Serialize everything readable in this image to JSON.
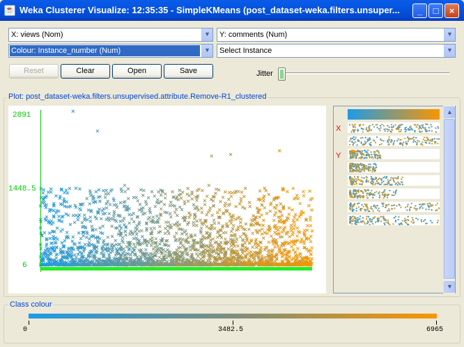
{
  "window": {
    "title": "Weka Clusterer Visualize: 12:35:35 - SimpleKMeans (post_dataset-weka.filters.unsuper...",
    "icon": "java-cup-icon",
    "controls": {
      "minimize": "_",
      "maximize": "□",
      "close": "×"
    }
  },
  "axes": {
    "x_select": "X: views (Nom)",
    "y_select": "Y: comments (Num)",
    "colour_select": "Colour: Instance_number (Num)",
    "instance_select": "Select Instance"
  },
  "toolbar": {
    "reset": "Reset",
    "clear": "Clear",
    "open": "Open",
    "save": "Save"
  },
  "jitter": {
    "label": "Jitter",
    "value": 0
  },
  "plot": {
    "title": "Plot: post_dataset-weka.filters.unsupervised.attribute.Remove-R1_clustered",
    "y_ticks": [
      "2891",
      "1448.5",
      "6"
    ]
  },
  "attribute_panel": {
    "x_marker": "X",
    "y_marker": "Y"
  },
  "class_colour": {
    "title": "Class colour",
    "min": "0",
    "mid": "3482.5",
    "max": "6965",
    "color_low": "#1e9be6",
    "color_high": "#fa9600"
  },
  "chart_data": {
    "type": "scatter",
    "title": "Plot: post_dataset-weka.filters.unsupervised.attribute.Remove-R1_clustered",
    "xlabel": "views (Nom)",
    "ylabel": "comments (Num)",
    "ylim": [
      6,
      2891
    ],
    "y_ticks": [
      6,
      1448.5,
      2891
    ],
    "colour_attribute": "Instance_number (Num)",
    "colour_range": [
      0,
      6965
    ],
    "marker": "x",
    "notable_points": [
      {
        "x": 0.12,
        "y": 2891
      },
      {
        "x": 0.21,
        "y": 2520
      },
      {
        "x": 0.63,
        "y": 2050
      },
      {
        "x": 0.7,
        "y": 2080
      },
      {
        "x": 0.88,
        "y": 2150
      },
      {
        "x": 0.31,
        "y": 1500
      },
      {
        "x": 0.62,
        "y": 1500
      },
      {
        "x": 0.83,
        "y": 1400
      },
      {
        "x": 0.03,
        "y": 800
      },
      {
        "x": 0.5,
        "y": 1050
      }
    ]
  }
}
